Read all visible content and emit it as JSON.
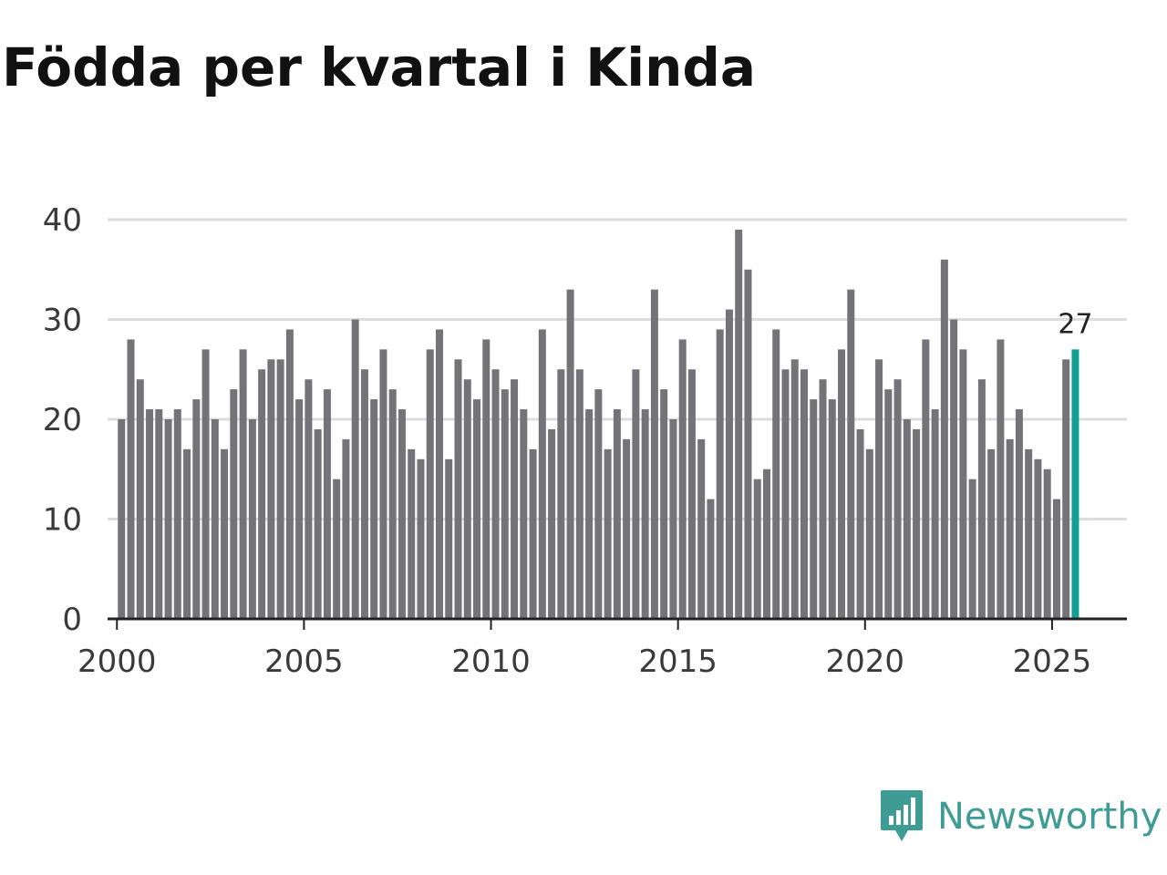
{
  "title": "Födda per kvartal i Kinda",
  "brand": {
    "name": "Newsworthy",
    "color": "#3f9c94",
    "icon": "newsworthy-logo-icon"
  },
  "colors": {
    "bar": "#747378",
    "highlight": "#12a095",
    "grid": "#dddddd",
    "axis": "#222222"
  },
  "chart_data": {
    "type": "bar",
    "title": "Födda per kvartal i Kinda",
    "xlabel": "",
    "ylabel": "",
    "x_start": 2000,
    "periods_per_year": 4,
    "xlim": [
      1999.75,
      2027.0
    ],
    "ylim": [
      0,
      40
    ],
    "yticks": [
      0,
      10,
      20,
      30,
      40
    ],
    "xticks": [
      2000,
      2005,
      2010,
      2015,
      2020,
      2025
    ],
    "grid": true,
    "values": [
      20,
      28,
      24,
      21,
      21,
      20,
      21,
      17,
      22,
      27,
      20,
      17,
      23,
      27,
      20,
      25,
      26,
      26,
      29,
      22,
      24,
      19,
      23,
      14,
      18,
      30,
      25,
      22,
      27,
      23,
      21,
      17,
      16,
      27,
      29,
      16,
      26,
      24,
      22,
      28,
      25,
      23,
      24,
      21,
      17,
      29,
      19,
      25,
      33,
      25,
      21,
      23,
      17,
      21,
      18,
      25,
      21,
      33,
      23,
      20,
      28,
      25,
      18,
      12,
      29,
      31,
      39,
      35,
      14,
      15,
      29,
      25,
      26,
      25,
      22,
      24,
      22,
      27,
      33,
      19,
      17,
      26,
      23,
      24,
      20,
      19,
      28,
      21,
      36,
      30,
      27,
      14,
      24,
      17,
      28,
      18,
      21,
      17,
      16,
      15,
      12,
      26,
      27
    ],
    "highlight_index": 102,
    "highlight_label": "27"
  }
}
